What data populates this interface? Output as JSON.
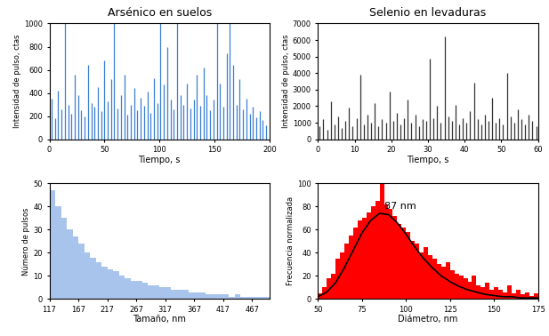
{
  "chart_data": [
    {
      "type": "spike",
      "title": "Arsénico en suelos",
      "x_label": "Tiempo, s",
      "y_label": "Intensidad de pulso, ctas",
      "color": "#3a7fd5",
      "x": [
        2,
        5,
        8,
        11,
        14,
        17,
        20,
        23,
        26,
        29,
        32,
        35,
        38,
        41,
        44,
        47,
        50,
        53,
        56,
        59,
        62,
        65,
        68,
        71,
        74,
        77,
        80,
        83,
        86,
        89,
        92,
        95,
        98,
        101,
        104,
        107,
        110,
        113,
        116,
        119,
        122,
        125,
        128,
        131,
        134,
        137,
        140,
        143,
        146,
        149,
        152,
        155,
        158,
        161,
        164,
        167,
        170,
        173,
        176,
        179,
        182,
        185,
        188,
        191,
        194,
        197
      ],
      "values": [
        350,
        180,
        420,
        260,
        1000,
        300,
        220,
        560,
        380,
        250,
        200,
        640,
        310,
        280,
        450,
        240,
        680,
        330,
        520,
        1000,
        270,
        380,
        560,
        210,
        300,
        440,
        250,
        360,
        290,
        410,
        230,
        530,
        310,
        1000,
        470,
        800,
        340,
        260,
        1000,
        380,
        300,
        480,
        270,
        340,
        560,
        290,
        620,
        380,
        250,
        340,
        1000,
        480,
        280,
        740,
        1000,
        640,
        300,
        520,
        260,
        350,
        220,
        280,
        190,
        240,
        170,
        120
      ],
      "xlim": [
        0,
        200
      ],
      "xticks": [
        0,
        50,
        100,
        150,
        200
      ],
      "ylim": [
        0,
        1000
      ],
      "yticks": [
        0,
        200,
        400,
        600,
        800,
        1000
      ]
    },
    {
      "type": "spike",
      "title": "Selenio en levaduras",
      "x_label": "Tiempo, s",
      "y_label": "Intensidad de pulso, ctas",
      "color": "#333333",
      "x": [
        0.5,
        1.5,
        2.5,
        3.5,
        4.5,
        5.5,
        6.5,
        7.5,
        8.5,
        9.5,
        10.5,
        11.5,
        12.5,
        13.5,
        14.5,
        15.5,
        16.5,
        17.5,
        18.5,
        19.5,
        20.5,
        21.5,
        22.5,
        23.5,
        24.5,
        25.5,
        26.5,
        27.5,
        28.5,
        29.5,
        30.5,
        31.5,
        32.5,
        33.5,
        34.5,
        35.5,
        36.5,
        37.5,
        38.5,
        39.5,
        40.5,
        41.5,
        42.5,
        43.5,
        44.5,
        45.5,
        46.5,
        47.5,
        48.5,
        49.5,
        50.5,
        51.5,
        52.5,
        53.5,
        54.5,
        55.5,
        56.5,
        57.5,
        58.5,
        59.5
      ],
      "values": [
        800,
        1200,
        600,
        2300,
        900,
        1400,
        700,
        1100,
        1900,
        800,
        1300,
        3900,
        900,
        1500,
        1000,
        2200,
        800,
        1200,
        1000,
        2900,
        1100,
        1600,
        900,
        1300,
        2400,
        1000,
        1500,
        800,
        1200,
        1100,
        4900,
        1300,
        2000,
        1000,
        6200,
        1400,
        1100,
        2100,
        900,
        1300,
        1000,
        1700,
        3400,
        1200,
        900,
        1500,
        1100,
        2500,
        1000,
        1300,
        900,
        4000,
        1400,
        1000,
        1800,
        1200,
        900,
        1500,
        1100,
        800
      ],
      "xlim": [
        0,
        60
      ],
      "xticks": [
        0,
        10,
        20,
        30,
        40,
        50,
        60
      ],
      "ylim": [
        0,
        7000
      ],
      "yticks": [
        0,
        1000,
        2000,
        3000,
        4000,
        5000,
        6000,
        7000
      ]
    },
    {
      "type": "histogram",
      "x_label": "Tamaño, nm",
      "y_label": "Número de pulsos",
      "color": "#a8c4ec",
      "bins": [
        117,
        127,
        137,
        147,
        157,
        167,
        177,
        187,
        197,
        207,
        217,
        227,
        237,
        247,
        257,
        267,
        277,
        287,
        297,
        307,
        317,
        327,
        337,
        347,
        357,
        367,
        377,
        387,
        397,
        407,
        417,
        427,
        437,
        447,
        457,
        467,
        477,
        487,
        497
      ],
      "counts": [
        47,
        40,
        35,
        30,
        27,
        24,
        20,
        18,
        16,
        14,
        13,
        12,
        10,
        9,
        8,
        8,
        7,
        6,
        6,
        5,
        5,
        4,
        4,
        4,
        3,
        3,
        3,
        2,
        2,
        2,
        2,
        1,
        2,
        1,
        1,
        1,
        1,
        1
      ],
      "xlim": [
        117,
        497
      ],
      "xticks": [
        117,
        167,
        217,
        267,
        317,
        367,
        417,
        467
      ],
      "ylim": [
        0,
        50
      ],
      "yticks": [
        0,
        10,
        20,
        30,
        40,
        50
      ]
    },
    {
      "type": "histogram",
      "x_label": "Diámetro, nm",
      "y_label": "Frecuencia normalizada",
      "annotations": [
        "87 nm"
      ],
      "series": [
        {
          "type": "histogram",
          "color": "#ff0000",
          "bins": [
            50,
            52.5,
            55,
            57.5,
            60,
            62.5,
            65,
            67.5,
            70,
            72.5,
            75,
            77.5,
            80,
            82.5,
            85,
            87.5,
            90,
            92.5,
            95,
            97.5,
            100,
            102.5,
            105,
            107.5,
            110,
            112.5,
            115,
            117.5,
            120,
            122.5,
            125,
            127.5,
            130,
            132.5,
            135,
            137.5,
            140,
            142.5,
            145,
            147.5,
            150,
            152.5,
            155,
            157.5,
            160,
            162.5,
            165,
            167.5,
            170,
            172.5,
            175
          ],
          "counts": [
            5,
            10,
            18,
            22,
            35,
            40,
            48,
            55,
            62,
            68,
            70,
            75,
            80,
            85,
            100,
            82,
            78,
            72,
            65,
            62,
            58,
            50,
            48,
            40,
            45,
            38,
            35,
            30,
            28,
            32,
            25,
            22,
            20,
            18,
            15,
            20,
            12,
            10,
            14,
            8,
            10,
            8,
            6,
            12,
            5,
            8,
            4,
            6,
            3,
            5
          ]
        },
        {
          "type": "line",
          "color": "#000000",
          "x": [
            50,
            55,
            60,
            65,
            70,
            75,
            80,
            85,
            90,
            95,
            100,
            105,
            110,
            115,
            120,
            125,
            130,
            135,
            140,
            145,
            150,
            155,
            160,
            165,
            170,
            175
          ],
          "values": [
            2,
            6,
            14,
            27,
            42,
            57,
            68,
            74,
            73,
            66,
            56,
            45,
            35,
            27,
            20,
            15,
            11,
            8,
            6,
            4,
            3,
            2,
            2,
            1,
            1,
            1
          ]
        }
      ],
      "xlim": [
        50,
        175
      ],
      "xticks": [
        50,
        75,
        100,
        125,
        150,
        175
      ],
      "ylim": [
        0,
        100
      ],
      "yticks": [
        0,
        20,
        40,
        60,
        80,
        100
      ]
    }
  ]
}
